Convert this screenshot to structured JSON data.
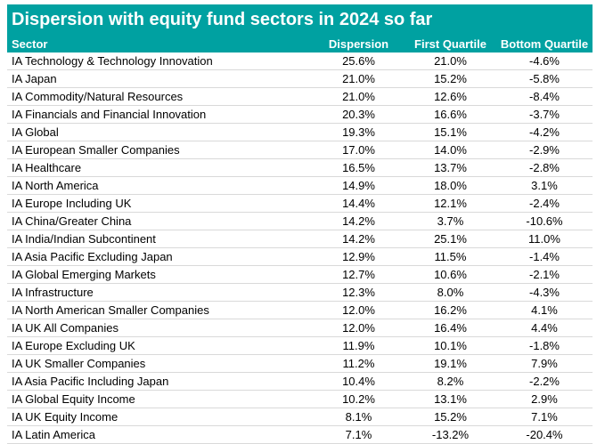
{
  "title": "Dispersion with equity fund sectors in 2024 so far",
  "accent_color": "#00a1a1",
  "columns": [
    "Sector",
    "Dispersion",
    "First Quartile",
    "Bottom Quartile"
  ],
  "rows": [
    {
      "sector": "IA Technology & Technology Innovation",
      "dispersion": "25.6%",
      "first_quartile": "21.0%",
      "bottom_quartile": "-4.6%"
    },
    {
      "sector": "IA Japan",
      "dispersion": "21.0%",
      "first_quartile": "15.2%",
      "bottom_quartile": "-5.8%"
    },
    {
      "sector": "IA Commodity/Natural Resources",
      "dispersion": "21.0%",
      "first_quartile": "12.6%",
      "bottom_quartile": "-8.4%"
    },
    {
      "sector": "IA Financials and Financial Innovation",
      "dispersion": "20.3%",
      "first_quartile": "16.6%",
      "bottom_quartile": "-3.7%"
    },
    {
      "sector": "IA Global",
      "dispersion": "19.3%",
      "first_quartile": "15.1%",
      "bottom_quartile": "-4.2%"
    },
    {
      "sector": "IA European Smaller Companies",
      "dispersion": "17.0%",
      "first_quartile": "14.0%",
      "bottom_quartile": "-2.9%"
    },
    {
      "sector": "IA Healthcare",
      "dispersion": "16.5%",
      "first_quartile": "13.7%",
      "bottom_quartile": "-2.8%"
    },
    {
      "sector": "IA North America",
      "dispersion": "14.9%",
      "first_quartile": "18.0%",
      "bottom_quartile": "3.1%"
    },
    {
      "sector": "IA Europe Including UK",
      "dispersion": "14.4%",
      "first_quartile": "12.1%",
      "bottom_quartile": "-2.4%"
    },
    {
      "sector": "IA China/Greater China",
      "dispersion": "14.2%",
      "first_quartile": "3.7%",
      "bottom_quartile": "-10.6%"
    },
    {
      "sector": "IA India/Indian Subcontinent",
      "dispersion": "14.2%",
      "first_quartile": "25.1%",
      "bottom_quartile": "11.0%"
    },
    {
      "sector": "IA Asia Pacific Excluding Japan",
      "dispersion": "12.9%",
      "first_quartile": "11.5%",
      "bottom_quartile": "-1.4%"
    },
    {
      "sector": "IA Global Emerging Markets",
      "dispersion": "12.7%",
      "first_quartile": "10.6%",
      "bottom_quartile": "-2.1%"
    },
    {
      "sector": "IA Infrastructure",
      "dispersion": "12.3%",
      "first_quartile": "8.0%",
      "bottom_quartile": "-4.3%"
    },
    {
      "sector": "IA North American Smaller Companies",
      "dispersion": "12.0%",
      "first_quartile": "16.2%",
      "bottom_quartile": "4.1%"
    },
    {
      "sector": "IA UK All Companies",
      "dispersion": "12.0%",
      "first_quartile": "16.4%",
      "bottom_quartile": "4.4%"
    },
    {
      "sector": "IA Europe Excluding UK",
      "dispersion": "11.9%",
      "first_quartile": "10.1%",
      "bottom_quartile": "-1.8%"
    },
    {
      "sector": "IA UK Smaller Companies",
      "dispersion": "11.2%",
      "first_quartile": "19.1%",
      "bottom_quartile": "7.9%"
    },
    {
      "sector": "IA Asia Pacific Including Japan",
      "dispersion": "10.4%",
      "first_quartile": "8.2%",
      "bottom_quartile": "-2.2%"
    },
    {
      "sector": "IA Global Equity Income",
      "dispersion": "10.2%",
      "first_quartile": "13.1%",
      "bottom_quartile": "2.9%"
    },
    {
      "sector": "IA UK Equity Income",
      "dispersion": "8.1%",
      "first_quartile": "15.2%",
      "bottom_quartile": "7.1%"
    },
    {
      "sector": "IA Latin America",
      "dispersion": "7.1%",
      "first_quartile": "-13.2%",
      "bottom_quartile": "-20.4%"
    }
  ]
}
